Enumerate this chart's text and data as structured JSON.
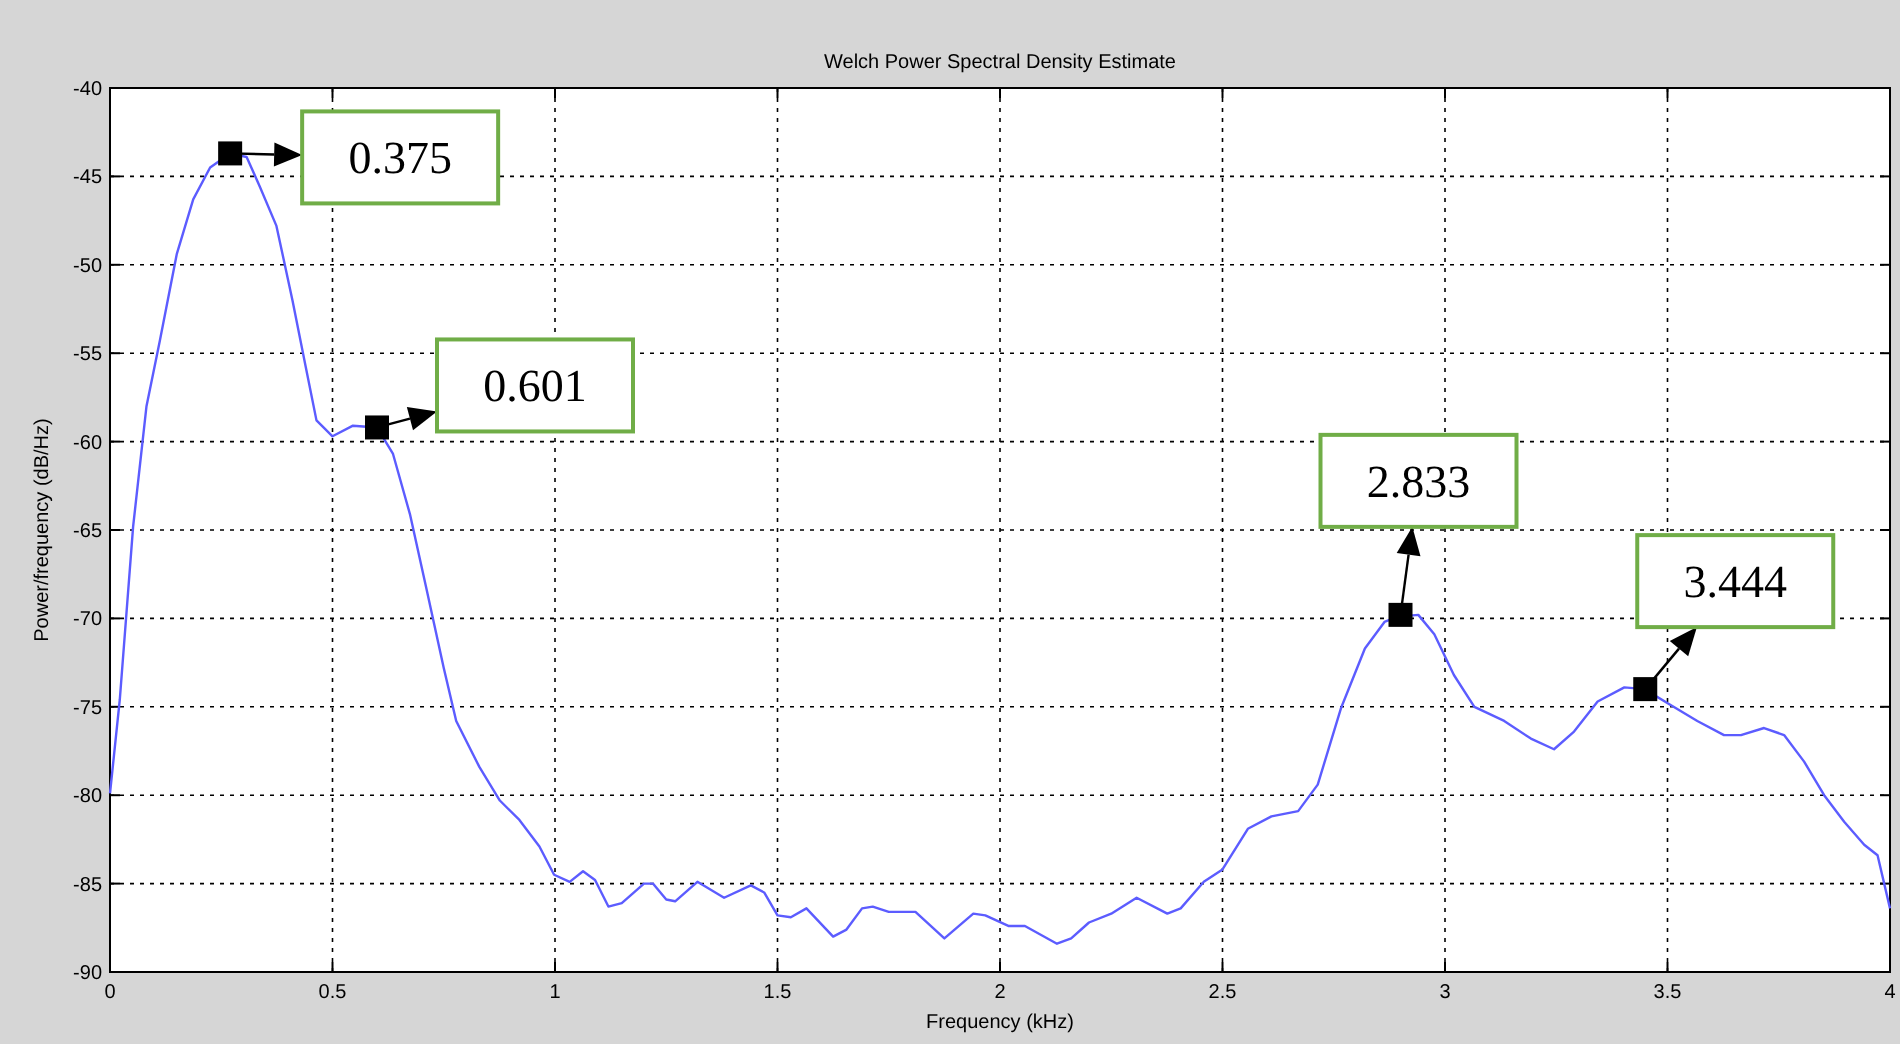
{
  "chart_data": {
    "type": "line",
    "title": "Welch Power Spectral Density Estimate",
    "xlabel": "Frequency (kHz)",
    "ylabel": "Power/frequency (dB/Hz)",
    "xlim": [
      0,
      4
    ],
    "xticks": [
      0,
      0.5,
      1,
      1.5,
      2,
      2.5,
      3,
      3.5,
      4
    ],
    "ylim": [
      -90,
      -40
    ],
    "yticks": [
      -90,
      -85,
      -80,
      -75,
      -70,
      -65,
      -60,
      -55,
      -50,
      -45,
      -40
    ],
    "grid": true,
    "marker": "none",
    "series": [
      {
        "color": "#5c5cff",
        "x": [
          0,
          0.022,
          0.052,
          0.082,
          0.112,
          0.15,
          0.187,
          0.225,
          0.27,
          0.307,
          0.337,
          0.374,
          0.41,
          0.44,
          0.464,
          0.5,
          0.546,
          0.6,
          0.636,
          0.674,
          0.71,
          0.75,
          0.778,
          0.83,
          0.876,
          0.92,
          0.965,
          0.998,
          1.033,
          1.063,
          1.09,
          1.12,
          1.15,
          1.2,
          1.22,
          1.25,
          1.27,
          1.32,
          1.38,
          1.44,
          1.47,
          1.5,
          1.53,
          1.565,
          1.625,
          1.655,
          1.69,
          1.714,
          1.75,
          1.81,
          1.875,
          1.94,
          1.967,
          2.02,
          2.056,
          2.128,
          2.16,
          2.2,
          2.25,
          2.307,
          2.376,
          2.406,
          2.458,
          2.5,
          2.557,
          2.61,
          2.67,
          2.714,
          2.766,
          2.82,
          2.864,
          2.894,
          2.94,
          2.976,
          3.02,
          3.066,
          3.133,
          3.193,
          3.245,
          3.29,
          3.343,
          3.403,
          3.448,
          3.507,
          3.567,
          3.627,
          3.665,
          3.717,
          3.762,
          3.807,
          3.852,
          3.897,
          3.942,
          3.972,
          4
        ],
        "values": [
          -79.9,
          -74.6,
          -64.8,
          -58,
          -54.3,
          -49.4,
          -46.3,
          -44.5,
          -43.7,
          -43.9,
          -45.6,
          -47.8,
          -52,
          -55.8,
          -58.8,
          -59.7,
          -59.1,
          -59.2,
          -60.7,
          -64.1,
          -68.2,
          -72.8,
          -75.8,
          -78.4,
          -80.3,
          -81.4,
          -82.9,
          -84.5,
          -84.9,
          -84.3,
          -84.8,
          -86.3,
          -86.1,
          -85,
          -85,
          -85.9,
          -86,
          -84.9,
          -85.8,
          -85.1,
          -85.5,
          -86.8,
          -86.9,
          -86.4,
          -88,
          -87.6,
          -86.4,
          -86.3,
          -86.6,
          -86.6,
          -88.1,
          -86.7,
          -86.8,
          -87.4,
          -87.4,
          -88.4,
          -88.1,
          -87.2,
          -86.7,
          -85.8,
          -86.7,
          -86.4,
          -84.9,
          -84.2,
          -81.9,
          -81.2,
          -80.9,
          -79.4,
          -75.1,
          -71.7,
          -70.2,
          -69.9,
          -69.8,
          -70.9,
          -73.2,
          -75,
          -75.8,
          -76.8,
          -77.4,
          -76.4,
          -74.7,
          -73.9,
          -74,
          -74.9,
          -75.8,
          -76.6,
          -76.6,
          -76.2,
          -76.6,
          -78.1,
          -80,
          -81.5,
          -82.8,
          -83.4,
          -86.4
        ]
      }
    ],
    "annotations": [
      {
        "text": "0.375",
        "x": 0.27,
        "y": -43.7
      },
      {
        "text": "0.601",
        "x": 0.6,
        "y": -59.2
      },
      {
        "text": "2.833",
        "x": 2.9,
        "y": -69.8
      },
      {
        "text": "3.444",
        "x": 3.45,
        "y": -74
      }
    ]
  }
}
